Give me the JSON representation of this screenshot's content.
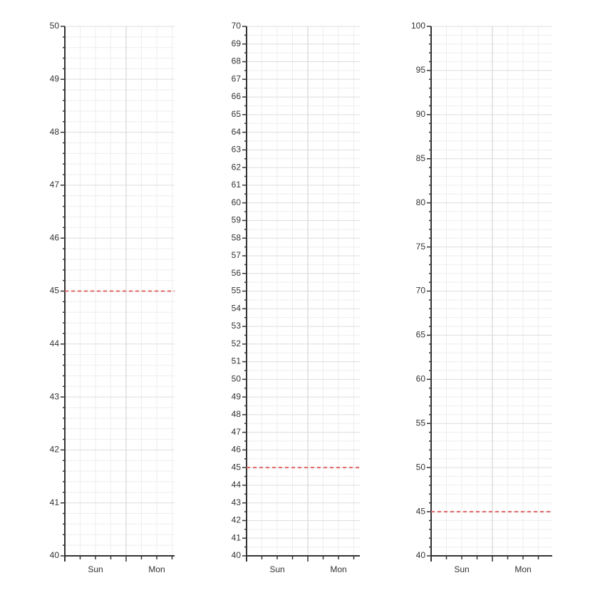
{
  "chart_data": [
    {
      "type": "line",
      "categories": [
        "Sun",
        "Mon"
      ],
      "ylim": [
        40,
        50
      ],
      "yticks": [
        40,
        41,
        42,
        43,
        44,
        45,
        46,
        47,
        48,
        49,
        50
      ],
      "minor_divisions": 5,
      "grid": true,
      "reference_line": {
        "value": 45,
        "color": "#e06666",
        "style": "dashed"
      }
    },
    {
      "type": "line",
      "categories": [
        "Sun",
        "Mon"
      ],
      "ylim": [
        40,
        70
      ],
      "yticks": [
        40,
        41,
        42,
        43,
        44,
        45,
        46,
        47,
        48,
        49,
        50,
        51,
        52,
        53,
        54,
        55,
        56,
        57,
        58,
        59,
        60,
        61,
        62,
        63,
        64,
        65,
        66,
        67,
        68,
        69,
        70
      ],
      "minor_divisions": 2,
      "grid": true,
      "reference_line": {
        "value": 45,
        "color": "#e06666",
        "style": "dashed"
      }
    },
    {
      "type": "line",
      "categories": [
        "Sun",
        "Mon"
      ],
      "ylim": [
        40,
        100
      ],
      "yticks": [
        40,
        45,
        50,
        55,
        60,
        65,
        70,
        75,
        80,
        85,
        90,
        95,
        100
      ],
      "minor_divisions": 5,
      "grid": true,
      "reference_line": {
        "value": 45,
        "color": "#e06666",
        "style": "dashed"
      }
    }
  ]
}
